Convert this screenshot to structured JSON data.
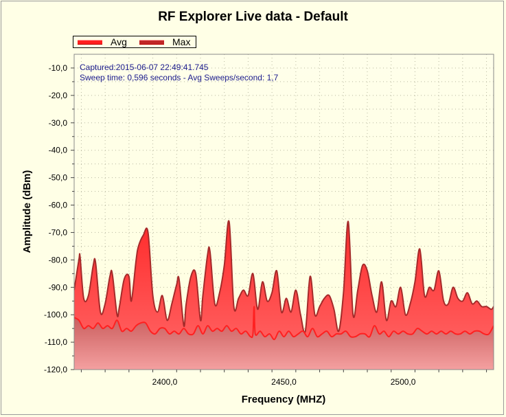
{
  "window": {
    "title": "RF Explorer Live data - Default"
  },
  "legend": {
    "items": [
      "Avg",
      "Max"
    ]
  },
  "annotations": {
    "captured": "Captured:2015-06-07 22:49:41.745",
    "sweep": "Sweep time: 0,596 seconds - Avg Sweeps/second: 1,7"
  },
  "colors": {
    "background": "#FFFFE6",
    "max_fill": "#FF4A4A",
    "max_line": "#A52A2A",
    "avg_line": "#FF2020",
    "avg_fill": "#D85A5A"
  },
  "chart_data": {
    "type": "area",
    "title": "RF Explorer Live data - Default",
    "xlabel": "Frequency (MHZ)",
    "ylabel": "Amplitude (dBm)",
    "xlim": [
      2362,
      2538
    ],
    "ylim": [
      -120,
      -5
    ],
    "x_ticks": [
      2400,
      2450,
      2500
    ],
    "x_tick_labels": [
      "2400,0",
      "2450,0",
      "2500,0"
    ],
    "y_ticks": [
      -10,
      -20,
      -30,
      -40,
      -50,
      -60,
      -70,
      -80,
      -90,
      -100,
      -110,
      -120
    ],
    "y_tick_labels": [
      "-10,0",
      "-20,0",
      "-30,0",
      "-40,0",
      "-50,0",
      "-60,0",
      "-70,0",
      "-80,0",
      "-90,0",
      "-100,0",
      "-110,0",
      "-120,0"
    ],
    "grid": true,
    "legend_position": "top-left",
    "series": [
      {
        "name": "Max",
        "x": [
          2362,
          2364,
          2364.5,
          2366,
          2368,
          2370,
          2371,
          2373,
          2375,
          2377,
          2378,
          2380,
          2381,
          2383,
          2385,
          2386,
          2388,
          2389,
          2391,
          2393,
          2395,
          2397,
          2399,
          2401,
          2403,
          2405,
          2406,
          2408,
          2409,
          2411,
          2413,
          2415,
          2416,
          2418,
          2419,
          2421,
          2423,
          2425,
          2427,
          2429,
          2431,
          2433,
          2435,
          2437,
          2439,
          2441,
          2443,
          2445,
          2447,
          2449,
          2451,
          2453,
          2455,
          2457,
          2459,
          2461,
          2463,
          2465,
          2467,
          2469,
          2471,
          2473,
          2475,
          2477,
          2479,
          2481,
          2483,
          2485,
          2487,
          2489,
          2491,
          2493,
          2495,
          2497,
          2499,
          2501,
          2503,
          2505,
          2507,
          2509,
          2511,
          2513,
          2515,
          2517,
          2519,
          2521,
          2523,
          2525,
          2527,
          2529,
          2531,
          2533,
          2535,
          2537,
          2538
        ],
        "values": [
          -91,
          -80,
          -79,
          -94,
          -93,
          -82,
          -81,
          -99,
          -96,
          -86,
          -85,
          -100,
          -97,
          -87,
          -86,
          -95,
          -80,
          -75,
          -71,
          -70,
          -93,
          -99,
          -93,
          -102,
          -96,
          -89,
          -87,
          -104,
          -96,
          -86,
          -85,
          -102,
          -93,
          -78,
          -77,
          -96,
          -92,
          -82,
          -66,
          -97,
          -94,
          -91,
          -93,
          -85,
          -98,
          -88,
          -95,
          -92,
          -84,
          -99,
          -94,
          -99,
          -91,
          -100,
          -106,
          -86,
          -100,
          -97,
          -94,
          -93,
          -98,
          -106,
          -92,
          -66,
          -100,
          -91,
          -82,
          -84,
          -93,
          -99,
          -88,
          -102,
          -95,
          -97,
          -90,
          -100,
          -96,
          -88,
          -76,
          -93,
          -90,
          -91,
          -84,
          -95,
          -96,
          -90,
          -94,
          -95,
          -92,
          -96,
          -95,
          -97,
          -97,
          -98,
          -97
        ]
      },
      {
        "name": "Avg",
        "x": [
          2362,
          2364,
          2366,
          2368,
          2370,
          2372,
          2374,
          2376,
          2378,
          2380,
          2382,
          2384,
          2386,
          2388,
          2390,
          2392,
          2394,
          2396,
          2398,
          2400,
          2402,
          2404,
          2406,
          2408,
          2410,
          2412,
          2414,
          2416,
          2418,
          2420,
          2422,
          2424,
          2426,
          2428,
          2430,
          2432,
          2434,
          2436,
          2437,
          2437.5,
          2438,
          2440,
          2442,
          2444,
          2446,
          2448,
          2450,
          2452,
          2454,
          2456,
          2458,
          2460,
          2462,
          2464,
          2466,
          2468,
          2470,
          2472,
          2474,
          2476,
          2478,
          2480,
          2482,
          2484,
          2486,
          2488,
          2490,
          2492,
          2494,
          2496,
          2498,
          2500,
          2502,
          2504,
          2506,
          2508,
          2510,
          2512,
          2514,
          2516,
          2518,
          2520,
          2522,
          2524,
          2526,
          2528,
          2530,
          2532,
          2534,
          2536,
          2538
        ],
        "values": [
          -101,
          -102,
          -105,
          -104,
          -105,
          -103,
          -105,
          -104,
          -105,
          -102,
          -106,
          -105,
          -106,
          -104,
          -103,
          -103,
          -106,
          -107,
          -105,
          -105,
          -107,
          -106,
          -107,
          -105,
          -107,
          -107,
          -104,
          -107,
          -104,
          -106,
          -105,
          -106,
          -104,
          -106,
          -105,
          -107,
          -106,
          -108,
          -107,
          -97,
          -107,
          -106,
          -108,
          -107,
          -109,
          -106,
          -108,
          -106,
          -108,
          -107,
          -106,
          -108,
          -105,
          -108,
          -107,
          -106,
          -108,
          -107,
          -107,
          -106,
          -108,
          -108,
          -107,
          -107,
          -108,
          -104,
          -107,
          -106,
          -108,
          -106,
          -107,
          -106,
          -107,
          -107,
          -105,
          -106,
          -107,
          -106,
          -107,
          -106,
          -107,
          -106,
          -107,
          -107,
          -106,
          -107,
          -106,
          -106,
          -107,
          -107,
          -104
        ]
      }
    ]
  }
}
